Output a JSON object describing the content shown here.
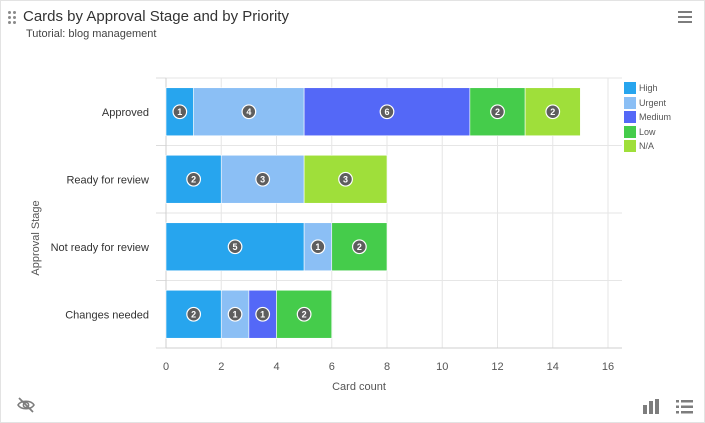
{
  "header": {
    "title": "Cards by Approval Stage and by Priority",
    "subtitle": "Tutorial: blog management"
  },
  "colors": {
    "High": "#27a5ee",
    "Urgent": "#8bbff5",
    "Medium": "#5468f7",
    "Low": "#45cc4b",
    "N/A": "#9fdf3a"
  },
  "icons": [
    "drag-handle-icon",
    "hamburger-menu-icon",
    "eye-off-icon",
    "bar-chart-icon",
    "list-icon"
  ],
  "chart_data": {
    "type": "bar",
    "orientation": "horizontal",
    "stacked": true,
    "xlabel": "Card count",
    "ylabel": "Approval Stage",
    "xlim": [
      0,
      16
    ],
    "xticks": [
      0,
      2,
      4,
      6,
      8,
      10,
      12,
      14,
      16
    ],
    "grid": true,
    "legend_position": "top-right",
    "categories": [
      "Approved",
      "Ready for review",
      "Not ready for review",
      "Changes needed"
    ],
    "series": [
      {
        "name": "High",
        "values": [
          1,
          2,
          5,
          2
        ]
      },
      {
        "name": "Urgent",
        "values": [
          4,
          3,
          1,
          1
        ]
      },
      {
        "name": "Medium",
        "values": [
          6,
          0,
          0,
          1
        ]
      },
      {
        "name": "Low",
        "values": [
          2,
          0,
          2,
          2
        ]
      },
      {
        "name": "N/A",
        "values": [
          2,
          3,
          0,
          0
        ]
      }
    ]
  }
}
